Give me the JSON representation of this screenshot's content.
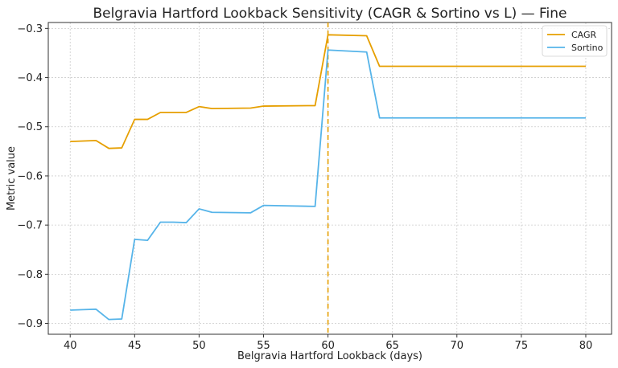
{
  "chart_data": {
    "type": "line",
    "title": "Belgravia Hartford Lookback Sensitivity (CAGR & Sortino vs L) — Fine",
    "xlabel": "Belgravia Hartford Lookback (days)",
    "ylabel": "Metric value",
    "xlim": [
      38.3,
      82.0
    ],
    "ylim": [
      -0.922,
      -0.288
    ],
    "xticks": [
      40,
      45,
      50,
      55,
      60,
      65,
      70,
      75,
      80
    ],
    "xtick_labels": [
      "40",
      "45",
      "50",
      "55",
      "60",
      "65",
      "70",
      "75",
      "80"
    ],
    "yticks": [
      -0.9,
      -0.8,
      -0.7,
      -0.6,
      -0.5,
      -0.4,
      -0.3
    ],
    "ytick_labels": [
      "−0.9",
      "−0.8",
      "−0.7",
      "−0.6",
      "−0.5",
      "−0.4",
      "−0.3"
    ],
    "grid": true,
    "legend_position": "top-right",
    "vline": {
      "x": 60,
      "color": "#E69F00",
      "style": "dashed"
    },
    "series": [
      {
        "name": "CAGR",
        "color": "#E69F00",
        "points": [
          [
            40,
            -0.53
          ],
          [
            41,
            -0.529
          ],
          [
            42,
            -0.528
          ],
          [
            43,
            -0.544
          ],
          [
            44,
            -0.543
          ],
          [
            45,
            -0.485
          ],
          [
            46,
            -0.485
          ],
          [
            47,
            -0.471
          ],
          [
            48,
            -0.471
          ],
          [
            49,
            -0.471
          ],
          [
            50,
            -0.459
          ],
          [
            51,
            -0.463
          ],
          [
            54,
            -0.462
          ],
          [
            55,
            -0.458
          ],
          [
            59,
            -0.457
          ],
          [
            60,
            -0.313
          ],
          [
            63,
            -0.315
          ],
          [
            64,
            -0.377
          ],
          [
            80,
            -0.377
          ]
        ]
      },
      {
        "name": "Sortino",
        "color": "#56B4E9",
        "points": [
          [
            40,
            -0.873
          ],
          [
            41,
            -0.872
          ],
          [
            42,
            -0.871
          ],
          [
            43,
            -0.892
          ],
          [
            44,
            -0.891
          ],
          [
            45,
            -0.729
          ],
          [
            46,
            -0.731
          ],
          [
            47,
            -0.694
          ],
          [
            48,
            -0.694
          ],
          [
            49,
            -0.695
          ],
          [
            50,
            -0.667
          ],
          [
            51,
            -0.674
          ],
          [
            54,
            -0.675
          ],
          [
            55,
            -0.66
          ],
          [
            59,
            -0.662
          ],
          [
            60,
            -0.344
          ],
          [
            63,
            -0.348
          ],
          [
            64,
            -0.482
          ],
          [
            80,
            -0.482
          ]
        ]
      }
    ]
  }
}
